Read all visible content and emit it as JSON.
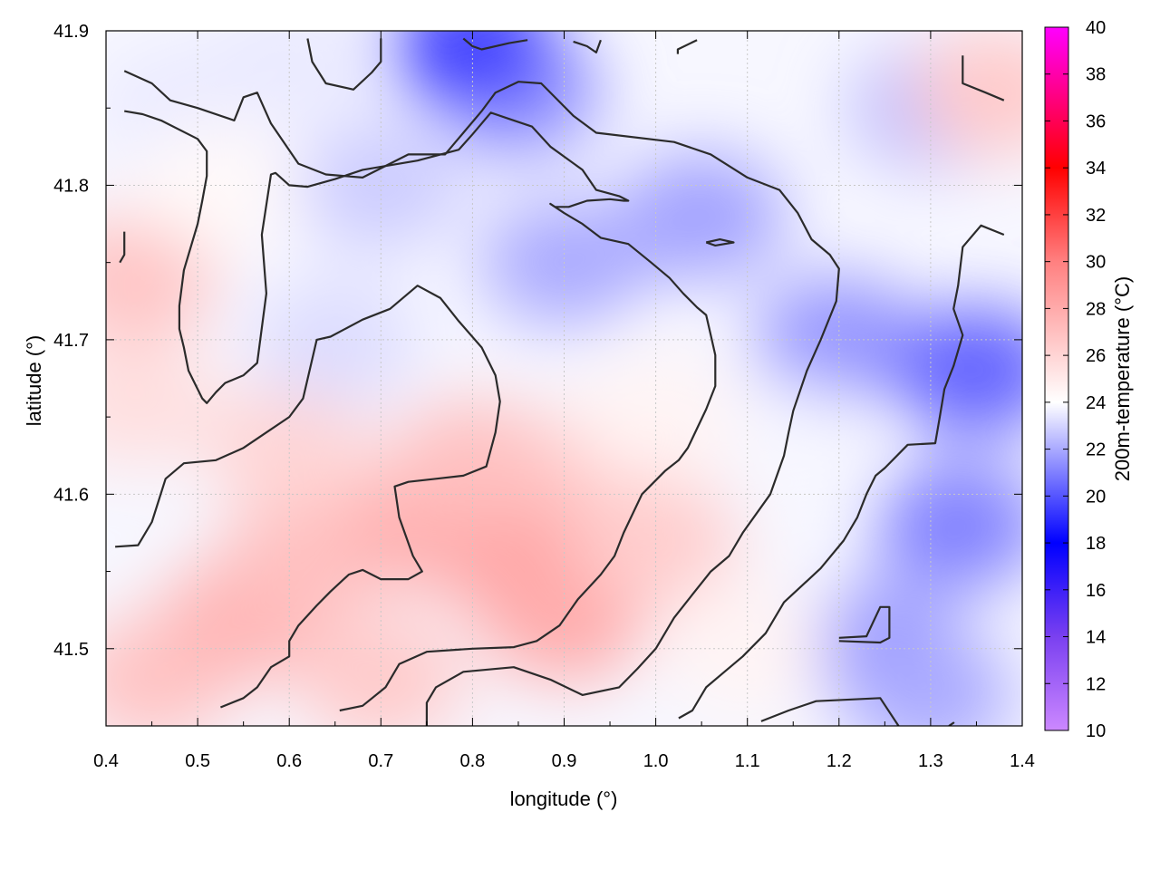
{
  "chart_data": {
    "type": "heatmap",
    "xlabel": "longitude (°)",
    "ylabel": "latitude (°)",
    "colorbar_label": "200m-temperature (°C)",
    "xlim": [
      0.4,
      1.4
    ],
    "ylim": [
      41.45,
      41.9
    ],
    "x_ticks": [
      "0.4",
      "0.5",
      "0.6",
      "0.7",
      "0.8",
      "0.9",
      "1.0",
      "1.1",
      "1.2",
      "1.3",
      "1.4"
    ],
    "y_ticks": [
      "41.5",
      "41.6",
      "41.7",
      "41.8",
      "41.9"
    ],
    "colorbar_range": [
      10,
      40
    ],
    "colorbar_ticks": [
      "10",
      "12",
      "14",
      "16",
      "18",
      "20",
      "22",
      "24",
      "26",
      "28",
      "30",
      "32",
      "34",
      "36",
      "38",
      "40"
    ],
    "colorscale": [
      [
        10,
        "#cc88ff"
      ],
      [
        14,
        "#7a40f0"
      ],
      [
        18,
        "#0000ff"
      ],
      [
        24,
        "#ffffff"
      ],
      [
        30,
        "#ff8080"
      ],
      [
        34,
        "#ff0000"
      ],
      [
        40,
        "#ff00ff"
      ]
    ],
    "grid": true,
    "temperature_field": [
      {
        "lon": 0.45,
        "lat": 41.48,
        "temp": 26.8
      },
      {
        "lon": 0.55,
        "lat": 41.52,
        "temp": 27.5
      },
      {
        "lon": 0.62,
        "lat": 41.56,
        "temp": 27.0
      },
      {
        "lon": 0.75,
        "lat": 41.58,
        "temp": 27.8
      },
      {
        "lon": 0.85,
        "lat": 41.56,
        "temp": 28.3
      },
      {
        "lon": 0.9,
        "lat": 41.52,
        "temp": 28.0
      },
      {
        "lon": 0.8,
        "lat": 41.62,
        "temp": 27.0
      },
      {
        "lon": 1.0,
        "lat": 41.57,
        "temp": 26.3
      },
      {
        "lon": 0.95,
        "lat": 41.62,
        "temp": 26.5
      },
      {
        "lon": 0.6,
        "lat": 41.63,
        "temp": 26.0
      },
      {
        "lon": 0.43,
        "lat": 41.74,
        "temp": 26.8
      },
      {
        "lon": 0.43,
        "lat": 41.66,
        "temp": 25.5
      },
      {
        "lon": 0.7,
        "lat": 41.48,
        "temp": 26.5
      },
      {
        "lon": 0.65,
        "lat": 41.7,
        "temp": 23.2
      },
      {
        "lon": 0.7,
        "lat": 41.8,
        "temp": 22.8
      },
      {
        "lon": 0.9,
        "lat": 41.75,
        "temp": 22.0
      },
      {
        "lon": 0.85,
        "lat": 41.86,
        "temp": 21.5
      },
      {
        "lon": 0.8,
        "lat": 41.89,
        "temp": 19.5
      },
      {
        "lon": 1.05,
        "lat": 41.78,
        "temp": 21.8
      },
      {
        "lon": 1.2,
        "lat": 41.7,
        "temp": 21.5
      },
      {
        "lon": 1.35,
        "lat": 41.68,
        "temp": 20.3
      },
      {
        "lon": 1.33,
        "lat": 41.58,
        "temp": 21.0
      },
      {
        "lon": 1.25,
        "lat": 41.5,
        "temp": 21.5
      },
      {
        "lon": 1.15,
        "lat": 41.63,
        "temp": 23.8
      },
      {
        "lon": 1.1,
        "lat": 41.5,
        "temp": 24.5
      },
      {
        "lon": 1.3,
        "lat": 41.85,
        "temp": 22.5
      },
      {
        "lon": 1.37,
        "lat": 41.86,
        "temp": 26.5
      },
      {
        "lon": 1.3,
        "lat": 41.47,
        "temp": 22.0
      },
      {
        "lon": 1.0,
        "lat": 41.65,
        "temp": 24.5
      },
      {
        "lon": 0.48,
        "lat": 41.85,
        "temp": 23.5
      },
      {
        "lon": 0.52,
        "lat": 41.8,
        "temp": 24.3
      },
      {
        "lon": 0.6,
        "lat": 41.88,
        "temp": 23.5
      }
    ],
    "contour_lines": [
      [
        [
          0.42,
          41.874
        ],
        [
          0.45,
          41.866
        ],
        [
          0.47,
          41.855
        ],
        [
          0.5,
          41.85
        ],
        [
          0.54,
          41.842
        ],
        [
          0.55,
          41.857
        ],
        [
          0.565,
          41.86
        ],
        [
          0.58,
          41.84
        ],
        [
          0.61,
          41.814
        ],
        [
          0.64,
          41.807
        ],
        [
          0.68,
          41.805
        ],
        [
          0.73,
          41.82
        ],
        [
          0.77,
          41.82
        ],
        [
          0.79,
          41.834
        ],
        [
          0.81,
          41.848
        ],
        [
          0.825,
          41.86
        ],
        [
          0.85,
          41.867
        ],
        [
          0.875,
          41.866
        ],
        [
          0.91,
          41.845
        ],
        [
          0.935,
          41.834
        ],
        [
          1.02,
          41.828
        ],
        [
          1.06,
          41.82
        ],
        [
          1.1,
          41.805
        ],
        [
          1.135,
          41.797
        ],
        [
          1.155,
          41.782
        ],
        [
          1.17,
          41.765
        ],
        [
          1.19,
          41.755
        ],
        [
          1.2,
          41.746
        ],
        [
          1.197,
          41.725
        ],
        [
          1.18,
          41.7
        ],
        [
          1.165,
          41.68
        ],
        [
          1.15,
          41.654
        ],
        [
          1.145,
          41.64
        ],
        [
          1.14,
          41.625
        ],
        [
          1.125,
          41.6
        ],
        [
          1.095,
          41.575
        ],
        [
          1.08,
          41.56
        ],
        [
          1.06,
          41.55
        ],
        [
          1.04,
          41.535
        ],
        [
          1.02,
          41.52
        ],
        [
          1.0,
          41.5
        ],
        [
          0.98,
          41.487
        ],
        [
          0.96,
          41.475
        ],
        [
          0.92,
          41.47
        ],
        [
          0.885,
          41.48
        ],
        [
          0.845,
          41.488
        ],
        [
          0.79,
          41.485
        ],
        [
          0.76,
          41.475
        ],
        [
          0.75,
          41.465
        ],
        [
          0.75,
          41.45
        ]
      ],
      [
        [
          0.42,
          41.848
        ],
        [
          0.44,
          41.846
        ],
        [
          0.46,
          41.842
        ],
        [
          0.5,
          41.83
        ],
        [
          0.51,
          41.822
        ],
        [
          0.51,
          41.806
        ],
        [
          0.505,
          41.79
        ],
        [
          0.5,
          41.775
        ],
        [
          0.485,
          41.745
        ],
        [
          0.48,
          41.722
        ],
        [
          0.48,
          41.707
        ],
        [
          0.485,
          41.695
        ],
        [
          0.49,
          41.68
        ],
        [
          0.505,
          41.662
        ],
        [
          0.51,
          41.659
        ],
        [
          0.52,
          41.666
        ],
        [
          0.53,
          41.672
        ],
        [
          0.55,
          41.677
        ],
        [
          0.565,
          41.685
        ],
        [
          0.575,
          41.73
        ],
        [
          0.57,
          41.768
        ],
        [
          0.58,
          41.807
        ],
        [
          0.585,
          41.808
        ],
        [
          0.6,
          41.8
        ],
        [
          0.62,
          41.799
        ],
        [
          0.65,
          41.804
        ],
        [
          0.68,
          41.81
        ],
        [
          0.71,
          41.813
        ],
        [
          0.74,
          41.816
        ],
        [
          0.785,
          41.823
        ],
        [
          0.8,
          41.833
        ],
        [
          0.82,
          41.847
        ],
        [
          0.84,
          41.843
        ],
        [
          0.865,
          41.838
        ],
        [
          0.885,
          41.825
        ],
        [
          0.92,
          41.81
        ],
        [
          0.935,
          41.797
        ],
        [
          0.96,
          41.793
        ],
        [
          0.97,
          41.79
        ],
        [
          0.965,
          41.79
        ],
        [
          0.95,
          41.791
        ],
        [
          0.925,
          41.79
        ],
        [
          0.905,
          41.786
        ],
        [
          0.89,
          41.786
        ],
        [
          0.885,
          41.788
        ],
        [
          0.9,
          41.782
        ],
        [
          0.92,
          41.775
        ],
        [
          0.94,
          41.766
        ],
        [
          0.97,
          41.762
        ],
        [
          0.995,
          41.75
        ],
        [
          1.015,
          41.74
        ],
        [
          1.03,
          41.73
        ],
        [
          1.045,
          41.721
        ],
        [
          1.055,
          41.716
        ],
        [
          1.06,
          41.703
        ],
        [
          1.065,
          41.69
        ],
        [
          1.065,
          41.67
        ],
        [
          1.055,
          41.655
        ],
        [
          1.035,
          41.63
        ],
        [
          1.025,
          41.622
        ],
        [
          1.01,
          41.615
        ],
        [
          0.985,
          41.6
        ],
        [
          0.965,
          41.575
        ],
        [
          0.955,
          41.56
        ],
        [
          0.94,
          41.548
        ],
        [
          0.915,
          41.532
        ],
        [
          0.895,
          41.515
        ],
        [
          0.87,
          41.505
        ],
        [
          0.845,
          41.501
        ],
        [
          0.8,
          41.5
        ],
        [
          0.75,
          41.498
        ],
        [
          0.72,
          41.49
        ],
        [
          0.705,
          41.475
        ],
        [
          0.68,
          41.463
        ],
        [
          0.655,
          41.46
        ]
      ],
      [
        [
          0.41,
          41.566
        ],
        [
          0.435,
          41.567
        ],
        [
          0.45,
          41.582
        ],
        [
          0.465,
          41.61
        ],
        [
          0.485,
          41.62
        ],
        [
          0.52,
          41.622
        ],
        [
          0.55,
          41.63
        ],
        [
          0.575,
          41.64
        ],
        [
          0.6,
          41.65
        ],
        [
          0.615,
          41.662
        ],
        [
          0.63,
          41.7
        ],
        [
          0.645,
          41.702
        ],
        [
          0.68,
          41.713
        ],
        [
          0.71,
          41.72
        ],
        [
          0.74,
          41.735
        ],
        [
          0.765,
          41.727
        ],
        [
          0.785,
          41.712
        ],
        [
          0.81,
          41.695
        ],
        [
          0.825,
          41.677
        ],
        [
          0.83,
          41.66
        ],
        [
          0.825,
          41.64
        ],
        [
          0.815,
          41.618
        ],
        [
          0.79,
          41.612
        ],
        [
          0.76,
          41.61
        ],
        [
          0.73,
          41.608
        ],
        [
          0.715,
          41.605
        ],
        [
          0.72,
          41.585
        ],
        [
          0.735,
          41.56
        ],
        [
          0.745,
          41.55
        ],
        [
          0.73,
          41.545
        ],
        [
          0.7,
          41.545
        ],
        [
          0.68,
          41.551
        ],
        [
          0.665,
          41.548
        ],
        [
          0.645,
          41.537
        ],
        [
          0.63,
          41.528
        ],
        [
          0.61,
          41.515
        ],
        [
          0.6,
          41.505
        ],
        [
          0.6,
          41.495
        ],
        [
          0.58,
          41.488
        ],
        [
          0.565,
          41.475
        ],
        [
          0.55,
          41.468
        ],
        [
          0.525,
          41.462
        ]
      ],
      [
        [
          0.415,
          41.75
        ],
        [
          0.42,
          41.755
        ],
        [
          0.42,
          41.77
        ]
      ],
      [
        [
          0.62,
          41.895
        ],
        [
          0.625,
          41.88
        ],
        [
          0.64,
          41.866
        ],
        [
          0.67,
          41.862
        ],
        [
          0.69,
          41.873
        ],
        [
          0.7,
          41.88
        ],
        [
          0.7,
          41.895
        ]
      ],
      [
        [
          0.79,
          41.895
        ],
        [
          0.8,
          41.89
        ],
        [
          0.81,
          41.888
        ],
        [
          0.84,
          41.892
        ],
        [
          0.86,
          41.894
        ]
      ],
      [
        [
          0.91,
          41.893
        ],
        [
          0.925,
          41.89
        ],
        [
          0.935,
          41.886
        ],
        [
          0.94,
          41.894
        ]
      ],
      [
        [
          1.024,
          41.885
        ],
        [
          1.024,
          41.888
        ],
        [
          1.045,
          41.894
        ]
      ],
      [
        [
          1.335,
          41.884
        ],
        [
          1.335,
          41.866
        ],
        [
          1.36,
          41.86
        ],
        [
          1.38,
          41.855
        ]
      ],
      [
        [
          1.38,
          41.768
        ],
        [
          1.355,
          41.774
        ],
        [
          1.335,
          41.76
        ],
        [
          1.33,
          41.735
        ],
        [
          1.325,
          41.72
        ],
        [
          1.335,
          41.703
        ],
        [
          1.325,
          41.683
        ],
        [
          1.315,
          41.668
        ],
        [
          1.31,
          41.65
        ],
        [
          1.305,
          41.633
        ],
        [
          1.275,
          41.632
        ],
        [
          1.25,
          41.617
        ],
        [
          1.24,
          41.612
        ],
        [
          1.23,
          41.6
        ],
        [
          1.22,
          41.585
        ],
        [
          1.205,
          41.57
        ],
        [
          1.18,
          41.552
        ],
        [
          1.14,
          41.53
        ],
        [
          1.12,
          41.51
        ],
        [
          1.095,
          41.495
        ],
        [
          1.075,
          41.485
        ],
        [
          1.055,
          41.475
        ],
        [
          1.04,
          41.46
        ],
        [
          1.025,
          41.455
        ]
      ],
      [
        [
          1.055,
          41.763
        ],
        [
          1.07,
          41.765
        ],
        [
          1.085,
          41.763
        ],
        [
          1.065,
          41.761
        ],
        [
          1.055,
          41.763
        ]
      ],
      [
        [
          1.2,
          41.507
        ],
        [
          1.23,
          41.508
        ],
        [
          1.245,
          41.527
        ],
        [
          1.255,
          41.527
        ],
        [
          1.255,
          41.507
        ],
        [
          1.245,
          41.504
        ],
        [
          1.2,
          41.505
        ]
      ],
      [
        [
          1.115,
          41.453
        ],
        [
          1.145,
          41.46
        ],
        [
          1.175,
          41.466
        ],
        [
          1.245,
          41.468
        ],
        [
          1.265,
          41.45
        ]
      ],
      [
        [
          1.32,
          41.45
        ],
        [
          1.325,
          41.452
        ],
        [
          1.32,
          41.45
        ]
      ]
    ]
  }
}
